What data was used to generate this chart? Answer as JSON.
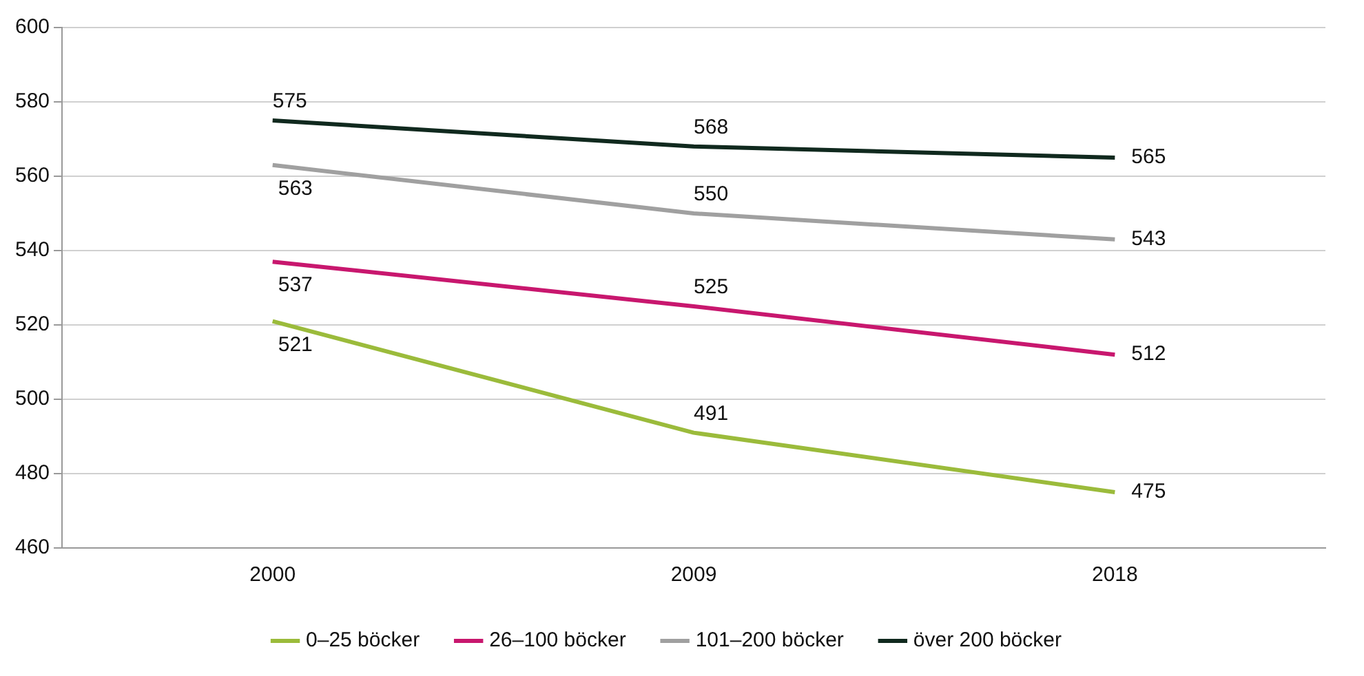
{
  "chart_data": {
    "type": "line",
    "categories": [
      "2000",
      "2009",
      "2018"
    ],
    "series": [
      {
        "name": "0–25 böcker",
        "color": "#9bbb3b",
        "values": [
          521,
          491,
          475
        ]
      },
      {
        "name": "26–100 böcker",
        "color": "#c8176e",
        "values": [
          537,
          525,
          512
        ]
      },
      {
        "name": "101–200 böcker",
        "color": "#a0a0a0",
        "values": [
          563,
          550,
          543
        ]
      },
      {
        "name": "över 200 böcker",
        "color": "#10291e",
        "values": [
          575,
          568,
          565
        ]
      }
    ],
    "ylim": [
      460,
      600
    ],
    "yticks": [
      460,
      480,
      500,
      520,
      540,
      560,
      580,
      600
    ],
    "grid": "y",
    "legend": "bottom",
    "data_labels": true,
    "marker": "none",
    "line_style": "solid"
  }
}
